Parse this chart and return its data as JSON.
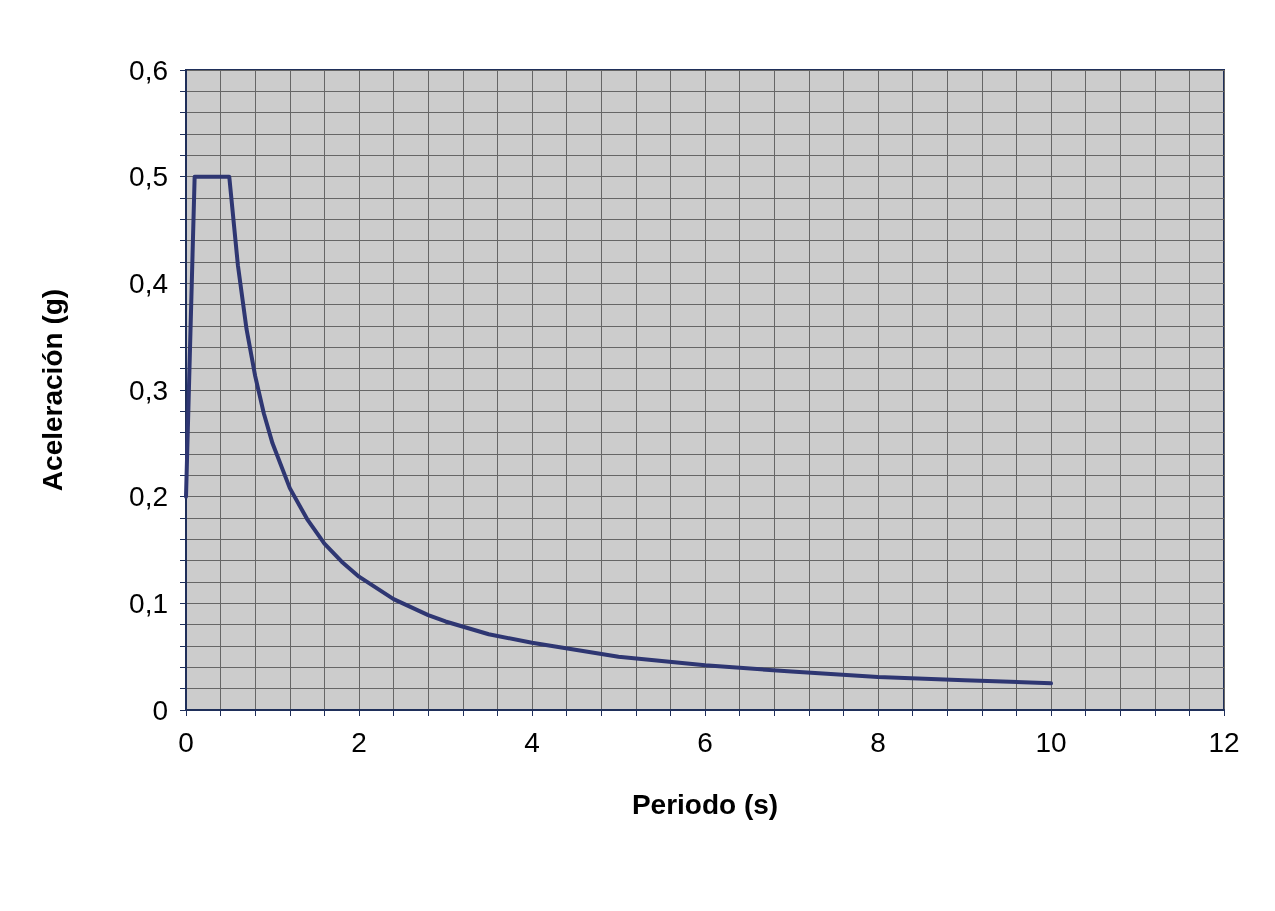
{
  "chart_data": {
    "type": "line",
    "xlabel": "Periodo (s)",
    "ylabel": "Aceleración (g)",
    "series": [
      {
        "color": "#2e3672",
        "x": [
          0,
          0.1,
          0.5,
          0.6,
          0.7,
          0.8,
          0.9,
          1.0,
          1.2,
          1.4,
          1.6,
          1.8,
          2.0,
          2.4,
          2.8,
          3.0,
          3.5,
          4.0,
          5.0,
          6.0,
          7.0,
          8.0,
          9.0,
          10.0
        ],
        "values": [
          0.2,
          0.5,
          0.5,
          0.417,
          0.357,
          0.313,
          0.278,
          0.25,
          0.208,
          0.179,
          0.156,
          0.139,
          0.125,
          0.104,
          0.089,
          0.083,
          0.071,
          0.063,
          0.05,
          0.042,
          0.036,
          0.031,
          0.028,
          0.025
        ]
      }
    ],
    "xlim": [
      0,
      12
    ],
    "xticks": [
      0,
      {
        "value": 0.4,
        "label": null
      },
      {
        "value": 0.8,
        "label": null
      },
      {
        "value": 1.2,
        "label": null
      },
      {
        "value": 1.6,
        "label": null
      },
      2,
      {
        "value": 2.4,
        "label": null
      },
      {
        "value": 2.8,
        "label": null
      },
      {
        "value": 3.2,
        "label": null
      },
      {
        "value": 3.6,
        "label": null
      },
      4,
      {
        "value": 4.4,
        "label": null
      },
      {
        "value": 4.8,
        "label": null
      },
      {
        "value": 5.2,
        "label": null
      },
      {
        "value": 5.6,
        "label": null
      },
      6,
      {
        "value": 6.4,
        "label": null
      },
      {
        "value": 6.8,
        "label": null
      },
      {
        "value": 7.2,
        "label": null
      },
      {
        "value": 7.6,
        "label": null
      },
      8,
      {
        "value": 8.4,
        "label": null
      },
      {
        "value": 8.8,
        "label": null
      },
      {
        "value": 9.2,
        "label": null
      },
      {
        "value": 9.6,
        "label": null
      },
      10,
      {
        "value": 10.4,
        "label": null
      },
      {
        "value": 10.8,
        "label": null
      },
      {
        "value": 11.2,
        "label": null
      },
      {
        "value": 11.6,
        "label": null
      },
      12
    ],
    "ylim": [
      0,
      0.6
    ],
    "yticks": [
      0,
      {
        "value": 0.02,
        "label": null
      },
      {
        "value": 0.04,
        "label": null
      },
      {
        "value": 0.06,
        "label": null
      },
      {
        "value": 0.08,
        "label": null
      },
      {
        "value": 0.1,
        "label": "0,1"
      },
      {
        "value": 0.12,
        "label": null
      },
      {
        "value": 0.14,
        "label": null
      },
      {
        "value": 0.16,
        "label": null
      },
      {
        "value": 0.18,
        "label": null
      },
      {
        "value": 0.2,
        "label": "0,2"
      },
      {
        "value": 0.22,
        "label": null
      },
      {
        "value": 0.24,
        "label": null
      },
      {
        "value": 0.26,
        "label": null
      },
      {
        "value": 0.28,
        "label": null
      },
      {
        "value": 0.3,
        "label": "0,3"
      },
      {
        "value": 0.32,
        "label": null
      },
      {
        "value": 0.34,
        "label": null
      },
      {
        "value": 0.36,
        "label": null
      },
      {
        "value": 0.38,
        "label": null
      },
      {
        "value": 0.4,
        "label": "0,4"
      },
      {
        "value": 0.42,
        "label": null
      },
      {
        "value": 0.44,
        "label": null
      },
      {
        "value": 0.46,
        "label": null
      },
      {
        "value": 0.48,
        "label": null
      },
      {
        "value": 0.5,
        "label": "0,5"
      },
      {
        "value": 0.52,
        "label": null
      },
      {
        "value": 0.54,
        "label": null
      },
      {
        "value": 0.56,
        "label": null
      },
      {
        "value": 0.58,
        "label": null
      },
      {
        "value": 0.6,
        "label": "0,6"
      }
    ],
    "grid": true,
    "marker": "none",
    "line_style": "solid"
  }
}
